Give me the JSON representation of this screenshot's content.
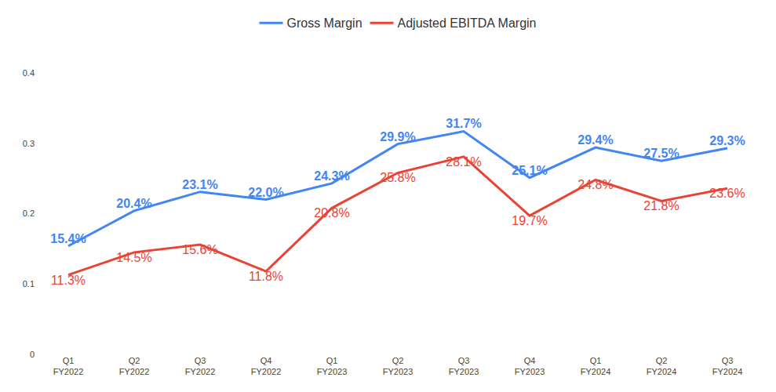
{
  "chart_data": {
    "type": "line",
    "categories": [
      "Q1\nFY2022",
      "Q2\nFY2022",
      "Q3\nFY2022",
      "Q4\nFY2022",
      "Q1\nFY2023",
      "Q2\nFY2023",
      "Q3\nFY2023",
      "Q4\nFY2023",
      "Q1\nFY2024",
      "Q2\nFY2024",
      "Q3\nFY2024"
    ],
    "series": [
      {
        "name": "Gross Margin",
        "color": "#4285f4",
        "values": [
          0.154,
          0.204,
          0.231,
          0.22,
          0.243,
          0.299,
          0.317,
          0.251,
          0.294,
          0.275,
          0.293
        ],
        "value_labels": [
          "15.4%",
          "20.4%",
          "23.1%",
          "22.0%",
          "24.3%",
          "29.9%",
          "31.7%",
          "25.1%",
          "29.4%",
          "27.5%",
          "29.3%"
        ]
      },
      {
        "name": "Adjusted EBITDA Margin",
        "color": "#ea4335",
        "values": [
          0.113,
          0.145,
          0.156,
          0.118,
          0.208,
          0.258,
          0.281,
          0.197,
          0.248,
          0.218,
          0.236
        ],
        "value_labels": [
          "11.3%",
          "14.5%",
          "15.6%",
          "11.8%",
          "20.8%",
          "25.8%",
          "28.1%",
          "19.7%",
          "24.8%",
          "21.8%",
          "23.6%"
        ]
      }
    ],
    "ylim": [
      0,
      0.4
    ],
    "yticks": [
      0,
      0.1,
      0.2,
      0.3,
      0.4
    ],
    "grid": false,
    "legend": "top",
    "data_labels": true
  }
}
